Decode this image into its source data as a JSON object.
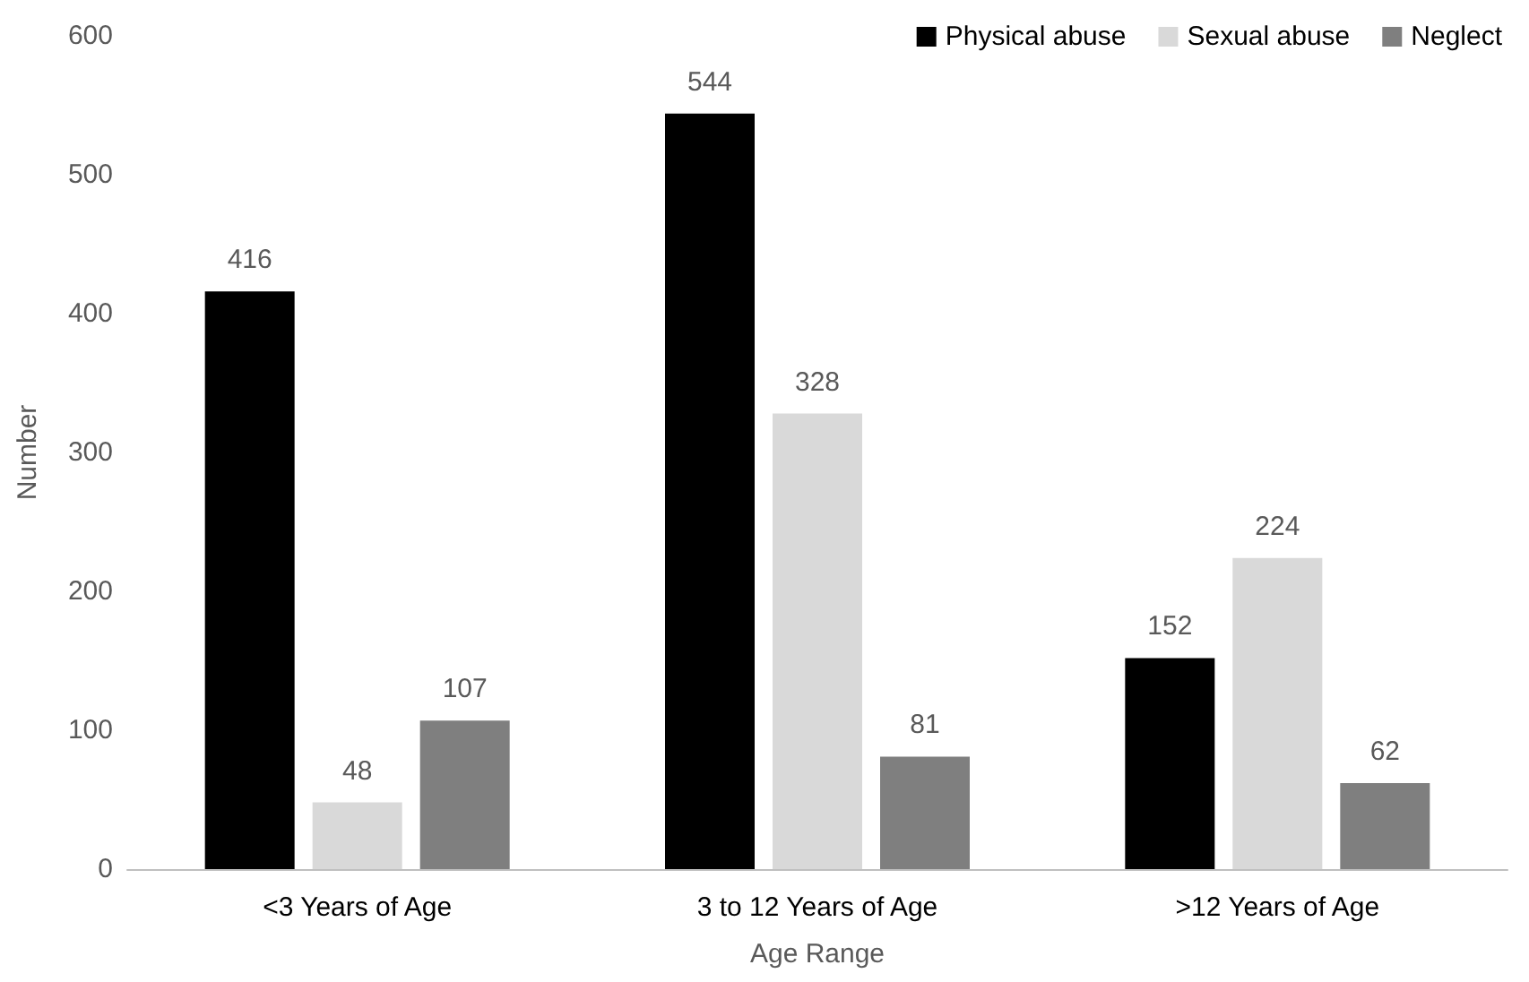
{
  "chart_data": {
    "type": "bar",
    "xlabel": "Age Range",
    "ylabel": "Number",
    "categories": [
      "<3 Years of Age",
      "3 to 12 Years of Age",
      ">12 Years of Age"
    ],
    "series": [
      {
        "name": "Physical abuse",
        "color": "#000000",
        "values": [
          416,
          544,
          152
        ]
      },
      {
        "name": "Sexual abuse",
        "color": "#d9d9d9",
        "values": [
          48,
          328,
          224
        ]
      },
      {
        "name": "Neglect",
        "color": "#7f7f7f",
        "values": [
          107,
          81,
          62
        ]
      }
    ],
    "ylim": [
      0,
      600
    ],
    "yticks": [
      0,
      100,
      200,
      300,
      400,
      500,
      600
    ],
    "data_labels": true,
    "grid": false,
    "legend": "top right"
  }
}
